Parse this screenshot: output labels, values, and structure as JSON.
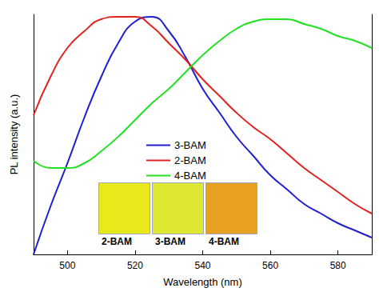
{
  "chart_data": {
    "type": "line",
    "xlabel": "Wavelength (nm)",
    "ylabel": "PL intensity (a.u.)",
    "x": [
      490,
      495,
      500,
      505,
      510,
      515,
      520,
      525,
      530,
      535,
      540,
      545,
      550,
      555,
      560,
      565,
      570,
      575,
      580,
      585,
      590
    ],
    "series": [
      {
        "name": "3-BAM",
        "color": "#1f1fd0",
        "values": [
          0.0,
          0.2,
          0.38,
          0.57,
          0.74,
          0.88,
          0.97,
          0.99,
          0.93,
          0.82,
          0.69,
          0.59,
          0.49,
          0.41,
          0.33,
          0.27,
          0.21,
          0.17,
          0.13,
          0.1,
          0.07
        ]
      },
      {
        "name": "2-BAM",
        "color": "#e0221f",
        "values": [
          0.58,
          0.74,
          0.86,
          0.93,
          0.98,
          0.99,
          0.99,
          0.95,
          0.88,
          0.81,
          0.73,
          0.66,
          0.59,
          0.53,
          0.48,
          0.42,
          0.36,
          0.31,
          0.26,
          0.21,
          0.17
        ]
      },
      {
        "name": "4-BAM",
        "color": "#22e022",
        "values": [
          0.39,
          0.36,
          0.36,
          0.38,
          0.43,
          0.49,
          0.56,
          0.63,
          0.69,
          0.76,
          0.83,
          0.89,
          0.94,
          0.97,
          0.98,
          0.98,
          0.96,
          0.94,
          0.91,
          0.89,
          0.86
        ]
      }
    ],
    "xlim": [
      490,
      590
    ],
    "xticks": [
      500,
      520,
      540,
      560,
      580
    ],
    "ylim": [
      0,
      1
    ],
    "yticks": [],
    "tick_labels": "x",
    "legend": "center",
    "annotations": [
      "2-BAM",
      "3-BAM",
      "4-BAM"
    ]
  }
}
